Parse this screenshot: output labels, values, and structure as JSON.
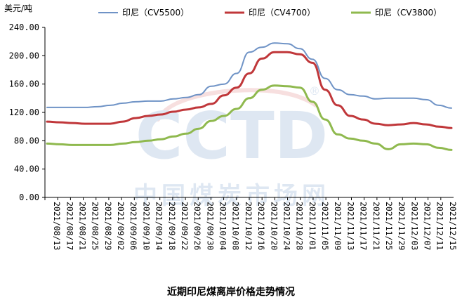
{
  "chart_data": {
    "type": "line",
    "title": "近期印尼煤离岸价格走势情况",
    "ylabel": "美元/吨",
    "ylim": [
      0,
      240
    ],
    "yticks": [
      "0.00",
      "40.00",
      "80.00",
      "120.00",
      "160.00",
      "200.00",
      "240.00"
    ],
    "grid": false,
    "legend": "top",
    "x_ticks": [
      "2021/08/13",
      "2021/08/17",
      "2021/08/21",
      "2021/08/25",
      "2021/08/29",
      "2021/09/02",
      "2021/09/06",
      "2021/09/10",
      "2021/09/14",
      "2021/09/18",
      "2021/09/22",
      "2021/09/26",
      "2021/09/30",
      "2021/10/04",
      "2021/10/08",
      "2021/10/12",
      "2021/10/16",
      "2021/10/20",
      "2021/10/24",
      "2021/10/28",
      "2021/11/01",
      "2021/11/05",
      "2021/11/09",
      "2021/11/13",
      "2021/11/17",
      "2021/11/21",
      "2021/11/25",
      "2021/11/29",
      "2021/12/03",
      "2021/12/07",
      "2021/12/11",
      "2021/12/15"
    ],
    "series": [
      {
        "name": "印尼（CV5500）",
        "color": "#6f93c6",
        "values": [
          127,
          127,
          127,
          127,
          128,
          130,
          133,
          135,
          136,
          136,
          139,
          141,
          145,
          157,
          160,
          175,
          205,
          212,
          218,
          217,
          210,
          195,
          168,
          152,
          145,
          143,
          139,
          140,
          140,
          140,
          138,
          130,
          126
        ]
      },
      {
        "name": "印尼（CV4700）",
        "color": "#c0373a",
        "values": [
          107,
          106,
          105,
          104,
          104,
          104,
          107,
          112,
          115,
          117,
          121,
          124,
          127,
          132,
          144,
          155,
          175,
          196,
          205,
          205,
          202,
          190,
          152,
          130,
          115,
          110,
          104,
          102,
          103,
          105,
          103,
          100,
          98
        ]
      },
      {
        "name": "印尼（CV3800）",
        "color": "#8fb94e",
        "values": [
          76,
          75,
          74,
          74,
          74,
          74,
          76,
          78,
          80,
          82,
          86,
          90,
          97,
          108,
          115,
          125,
          140,
          152,
          158,
          157,
          155,
          135,
          110,
          89,
          83,
          80,
          76,
          68,
          75,
          76,
          75,
          70,
          67
        ]
      }
    ]
  },
  "watermark": {
    "logo": "CCTD",
    "registered": "®",
    "site_name": "中国煤炭市场网"
  }
}
